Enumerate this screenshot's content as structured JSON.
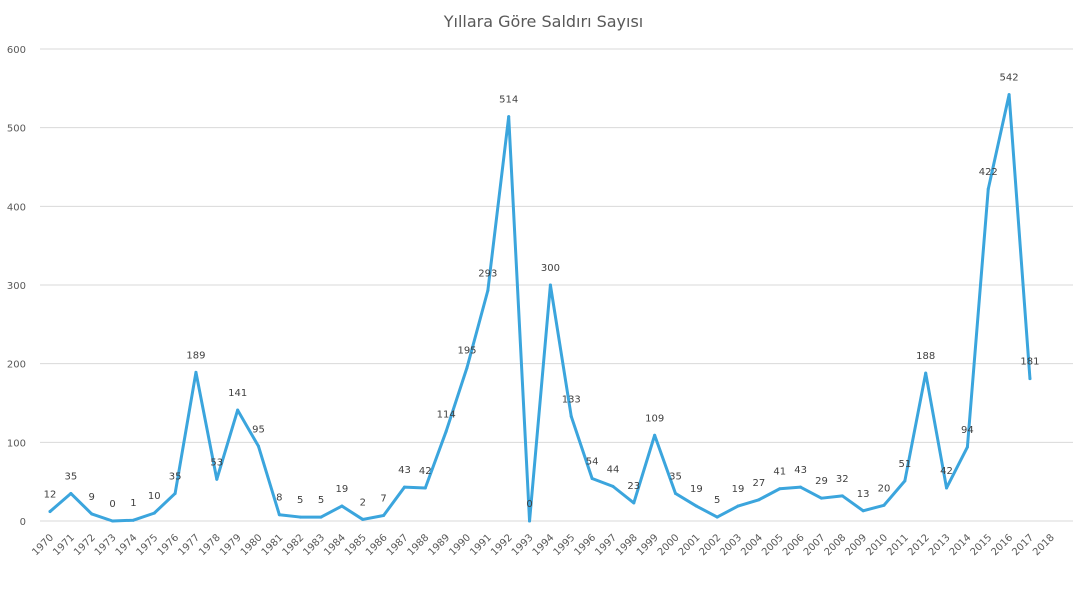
{
  "chart_data": {
    "type": "line",
    "title": "Yıllara Göre Saldırı Sayısı",
    "xlabel": "",
    "ylabel": "",
    "ylim": [
      0,
      600
    ],
    "y_ticks": [
      0,
      100,
      200,
      300,
      400,
      500,
      600
    ],
    "grid": true,
    "legend": "none",
    "categories": [
      "1970",
      "1971",
      "1972",
      "1973",
      "1974",
      "1975",
      "1976",
      "1977",
      "1978",
      "1979",
      "1980",
      "1981",
      "1982",
      "1983",
      "1984",
      "1985",
      "1986",
      "1987",
      "1988",
      "1989",
      "1990",
      "1991",
      "1992",
      "1993",
      "1994",
      "1995",
      "1996",
      "1997",
      "1998",
      "1999",
      "2000",
      "2001",
      "2002",
      "2003",
      "2004",
      "2005",
      "2006",
      "2007",
      "2008",
      "2009",
      "2010",
      "2011",
      "2012",
      "2013",
      "2014",
      "2015",
      "2016",
      "2017",
      "2018"
    ],
    "series": [
      {
        "values": [
          12,
          35,
          9,
          0,
          1,
          10,
          35,
          189,
          53,
          141,
          95,
          8,
          5,
          5,
          19,
          2,
          7,
          43,
          42,
          114,
          195,
          293,
          514,
          0,
          300,
          133,
          54,
          44,
          23,
          109,
          35,
          19,
          5,
          19,
          27,
          41,
          43,
          29,
          32,
          13,
          20,
          51,
          188,
          42,
          94,
          422,
          542,
          181,
          null
        ],
        "color": "#3ba5dd"
      }
    ]
  }
}
